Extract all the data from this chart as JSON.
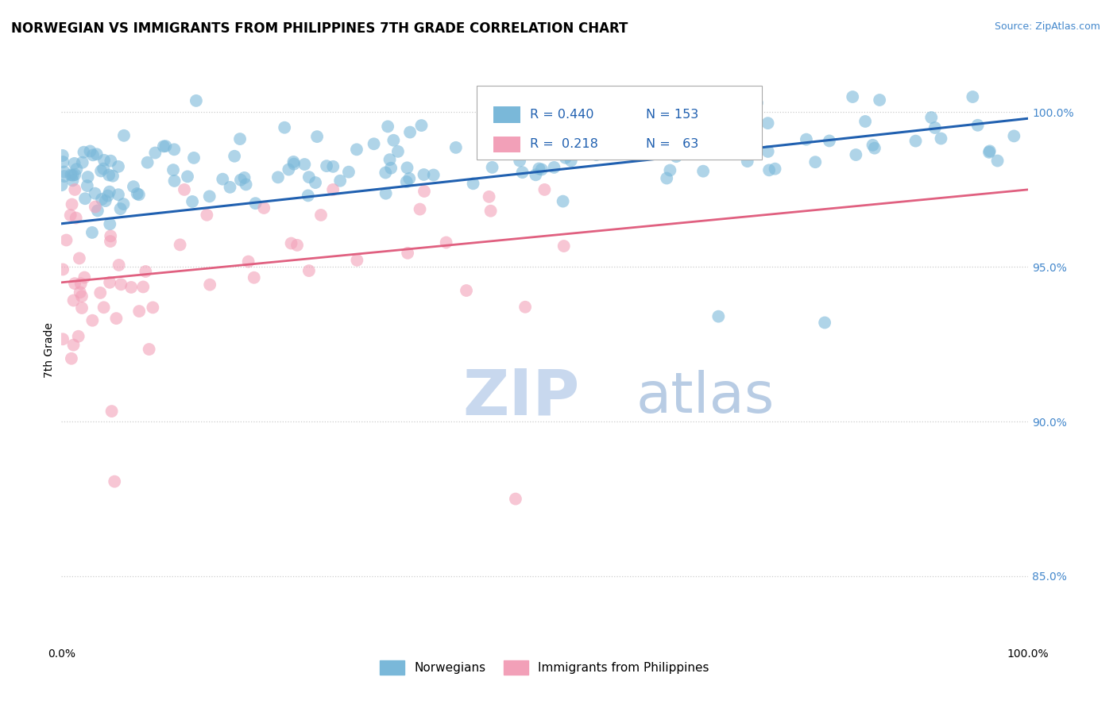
{
  "title": "NORWEGIAN VS IMMIGRANTS FROM PHILIPPINES 7TH GRADE CORRELATION CHART",
  "source_text": "Source: ZipAtlas.com",
  "ylabel": "7th Grade",
  "legend_labels": [
    "Norwegians",
    "Immigrants from Philippines"
  ],
  "blue_R": 0.44,
  "blue_N": 153,
  "pink_R": 0.218,
  "pink_N": 63,
  "blue_color": "#7ab8d9",
  "pink_color": "#f2a0b8",
  "blue_line_color": "#2060b0",
  "pink_line_color": "#e06080",
  "source_color": "#4488cc",
  "watermark_zip_color": "#c8d8ee",
  "watermark_atlas_color": "#b8cce4",
  "legend_text_color": "#2060b0",
  "scatter_alpha": 0.6,
  "scatter_size": 130,
  "xlim": [
    0.0,
    100.0
  ],
  "ylim": [
    0.828,
    1.018
  ],
  "y_ticks": [
    0.85,
    0.9,
    0.95,
    1.0
  ],
  "y_tick_labels": [
    "85.0%",
    "90.0%",
    "95.0%",
    "100.0%"
  ],
  "x_ticks": [
    0,
    20,
    40,
    60,
    80,
    100
  ],
  "x_tick_labels": [
    "0.0%",
    "",
    "",
    "",
    "",
    "100.0%"
  ],
  "blue_trend_x": [
    0,
    100
  ],
  "blue_trend_y": [
    0.964,
    0.998
  ],
  "pink_trend_x": [
    0,
    100
  ],
  "pink_trend_y": [
    0.945,
    0.975
  ]
}
